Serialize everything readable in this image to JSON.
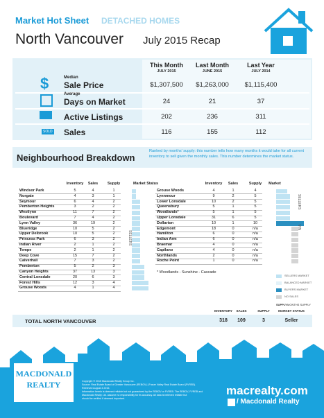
{
  "header": {
    "title": "Market Hot Sheet",
    "category": "DETACHED HOMES",
    "region": "North Vancouver",
    "period": "July 2015 Recap"
  },
  "summary": {
    "columns": [
      {
        "label": "This Month",
        "period": "JULY 2015"
      },
      {
        "label": "Last Month",
        "period": "JUNE 2015"
      },
      {
        "label": "Last Year",
        "period": "JULY 2014"
      }
    ],
    "rows": [
      {
        "icon": "$",
        "prefix": "Median",
        "label": "Sale Price",
        "values": [
          "$1,307,500",
          "$1,263,000",
          "$1,115,400"
        ]
      },
      {
        "prefix": "Average",
        "label": "Days on Market",
        "values": [
          24,
          21,
          37
        ]
      },
      {
        "label": "Active Listings",
        "values": [
          202,
          236,
          311
        ]
      },
      {
        "icon": "SOLD",
        "label": "Sales",
        "values": [
          116,
          155,
          112
        ]
      }
    ]
  },
  "breakdown": {
    "title": "Neighbourhood Breakdown",
    "description": "Ranked by months' supply: this number tells how many months it would take for all current inventory to sell given the monthly sales. This number determines the market status.",
    "left": {
      "columns": [
        "Inventory",
        "Sales",
        "Supply",
        "Market Status"
      ],
      "status_label": "SELLERS",
      "bar_color": "#bfe3f3",
      "rows": [
        [
          "Windsor Park",
          5,
          4,
          1
        ],
        [
          "Norgate",
          4,
          3,
          1
        ],
        [
          "Seymour",
          6,
          4,
          2
        ],
        [
          "Pemberton Heights",
          3,
          2,
          2
        ],
        [
          "Westlynn",
          11,
          7,
          2
        ],
        [
          "Boulevard",
          7,
          4,
          2
        ],
        [
          "Lynn Valley",
          36,
          19,
          2
        ],
        [
          "Blueridge",
          10,
          5,
          2
        ],
        [
          "Upper Delbrook",
          10,
          5,
          2
        ],
        [
          "Princess Park",
          6,
          3,
          2
        ],
        [
          "Indian River",
          2,
          1,
          2
        ],
        [
          "Tempe",
          2,
          1,
          2
        ],
        [
          "Deep Cove",
          15,
          7,
          2
        ],
        [
          "Calverhall",
          7,
          3,
          2
        ],
        [
          "Pemberton",
          5,
          2,
          3
        ],
        [
          "Canyon Heights",
          37,
          13,
          3
        ],
        [
          "Central Lonsdale",
          20,
          6,
          3
        ],
        [
          "Forest Hills",
          12,
          3,
          4
        ],
        [
          "Grouse Woods",
          4,
          1,
          4
        ]
      ]
    },
    "right": {
      "columns": [
        "Inventory",
        "Sales",
        "Supply",
        "Market"
      ],
      "status_labels": [
        "SELLERS",
        "N/A"
      ],
      "rows": [
        [
          "Grouse Woods",
          4,
          1,
          4
        ],
        [
          "Lynnmour",
          9,
          2,
          5
        ],
        [
          "Lower Lonsdale",
          10,
          2,
          5
        ],
        [
          "Queensbury",
          5,
          1,
          5
        ],
        [
          "Woodlands*",
          5,
          1,
          5
        ],
        [
          "Upper Lonsdale",
          31,
          6,
          5
        ],
        [
          "Dollarton",
          10,
          1,
          10
        ],
        [
          "Edgemont",
          18,
          0,
          "n/a"
        ],
        [
          "Hamilton",
          6,
          0,
          "n/a"
        ],
        [
          "Indian Arm",
          6,
          0,
          "n/a"
        ],
        [
          "Braemar",
          4,
          0,
          "n/a"
        ],
        [
          "Capilano",
          4,
          0,
          "n/a"
        ],
        [
          "Northlands",
          2,
          0,
          "n/a"
        ],
        [
          "Roche Point",
          1,
          0,
          "n/a"
        ]
      ],
      "bar_colors": [
        "#bfe3f3",
        "#bfe3f3",
        "#bfe3f3",
        "#bfe3f3",
        "#bfe3f3",
        "#bfe3f3",
        "#2a8fc0",
        "#d4d4d4",
        "#d4d4d4",
        "#d4d4d4",
        "#d4d4d4",
        "#d4d4d4",
        "#d4d4d4",
        "#d4d4d4"
      ],
      "note": "* Woodlands - Sunshine - Cascade"
    },
    "legend": [
      {
        "label": "SELLERS MARKET",
        "color": "#bfe3f3"
      },
      {
        "label": "BALANCED MARKET",
        "color": "#e3f2f9"
      },
      {
        "label": "BUYERS MARKET",
        "color": "#2a8fc0"
      },
      {
        "label": "NO SALES",
        "color": "#d4d4d4"
      }
    ],
    "axis_labels": [
      "SUPPLY",
      "MONTHS SUPPLY"
    ]
  },
  "total": {
    "columns": [
      "INVENTORY",
      "SALES",
      "SUPPLY",
      "MARKET STATUS"
    ],
    "label": "TOTAL NORTH VANCOUVER",
    "values": [
      318,
      109,
      3,
      "Seller"
    ]
  },
  "footer": {
    "brand": [
      "MACDONALD",
      "REALTY"
    ],
    "website": "macrealty.com",
    "social": "/ Macdonald Realty",
    "fine_print": [
      "Copyright © 2015 Macdonald Realty Group Inc.",
      "Source: Real Estate Board of Greater Vancouver (REBGV) | Fraser Valley Real Estate Board (FVREB).",
      "Retrieved August 4 2015.",
      "Information herein is deemed reliable but not guaranteed by the REBGV or FVREB. The REBGV, FVREB and",
      "Macdonald Realty Ltd. assume no responsibility for its accuracy. All data is believed reliable but",
      "should be verified if deemed important."
    ]
  }
}
